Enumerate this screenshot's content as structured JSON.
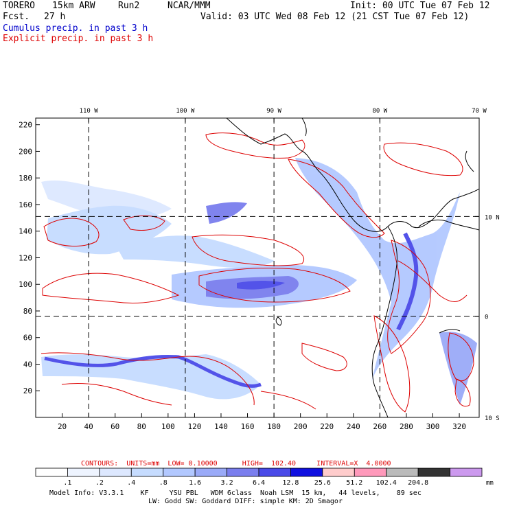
{
  "header": {
    "model": "TORERO",
    "resolution": "15km ARW",
    "run": "Run2",
    "org": "NCAR/MMM",
    "init": "Init: 00 UTC Tue 07 Feb 12",
    "fcst_label": "Fcst.",
    "fcst_value": "27 h",
    "valid": "Valid: 03 UTC Wed 08 Feb 12 (21 CST Tue 07 Feb 12)",
    "cumulus_label": "Cumulus precip. in past 3 h",
    "explicit_label": "Explicit precip. in past 3 h"
  },
  "colors": {
    "cumulus": "#0000cc",
    "explicit": "#dd0000",
    "grid": "#000000",
    "coast": "#000000"
  },
  "chart_data": {
    "type": "heatmap",
    "title": "Cumulus precip. in past 3 h / Explicit precip. in past 3 h",
    "x_ticks": [
      20,
      40,
      60,
      80,
      100,
      120,
      140,
      160,
      180,
      200,
      220,
      240,
      260,
      280,
      300,
      320
    ],
    "y_ticks": [
      20,
      40,
      60,
      80,
      100,
      120,
      140,
      160,
      180,
      200,
      220
    ],
    "xlim": [
      0,
      335
    ],
    "ylim": [
      0,
      225
    ],
    "lon_labels": [
      {
        "label": "110 W",
        "x": 40
      },
      {
        "label": "100 W",
        "x": 113
      },
      {
        "label": "90 W",
        "x": 180
      },
      {
        "label": "80 W",
        "x": 260
      },
      {
        "label": "70 W",
        "x": 335
      }
    ],
    "lat_labels": [
      {
        "label": "10 N",
        "y": 151
      },
      {
        "label": "0",
        "y": 76
      },
      {
        "label": "10 S",
        "y": 0
      }
    ],
    "contours": {
      "text": "CONTOURS:  UNITS=mm  LOW= 0.10000      HIGH=  102.40     INTERVAL=X  4.0000"
    },
    "color_scale": {
      "levels": [
        ".1",
        ".2",
        ".4",
        ".8",
        "1.6",
        "3.2",
        "6.4",
        "12.8",
        "25.6",
        "51.2",
        "102.4",
        "204.8"
      ],
      "unit": "mm",
      "colors": [
        "#ffffff",
        "#eef4ff",
        "#dde8ff",
        "#c6dcff",
        "#b2c8ff",
        "#9aaaf8",
        "#7a7eee",
        "#4a4ae8",
        "#1010e0",
        "#ffcccc",
        "#ff99bb",
        "#bbbbbb",
        "#333333",
        "#cc99ee"
      ]
    },
    "model_info": {
      "line1": "Model Info: V3.3.1    KF     YSU PBL   WDM 6class  Noah LSM  15 km,   44 levels,    89 sec",
      "line2": "LW: Godd SW: Goddard DIFF: simple KM: 2D Smagor"
    }
  }
}
